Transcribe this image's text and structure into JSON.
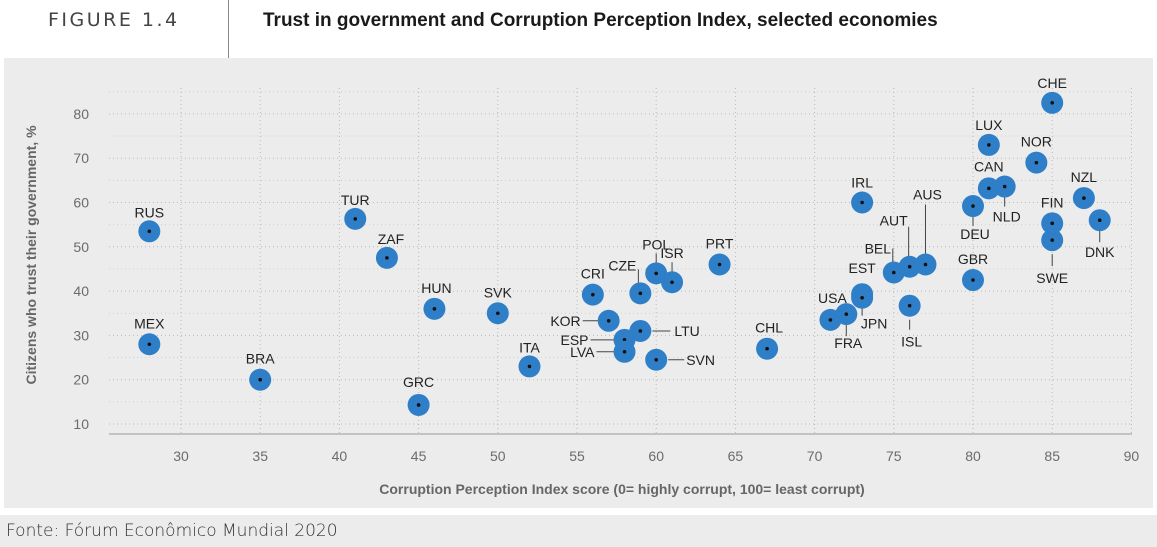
{
  "header": {
    "figure_label": "FIGURE 1.4",
    "title": "Trust in government and Corruption Perception Index, selected economies"
  },
  "source": "Fonte: Fórum Econômico Mundial 2020",
  "colors": {
    "point": "#2f7fc8",
    "point_center": "#111111",
    "panel": "#ececec"
  },
  "chart_data": {
    "type": "scatter",
    "xlabel": "Corruption Perception Index score (0= highly corrupt, 100= least corrupt)",
    "ylabel": "Citizens who trust their government, %",
    "xlim": [
      25.5,
      90
    ],
    "ylim": [
      8,
      86
    ],
    "xticks": [
      30,
      35,
      40,
      45,
      50,
      55,
      60,
      65,
      70,
      75,
      80,
      85,
      90
    ],
    "yticks": [
      10,
      20,
      30,
      40,
      50,
      60,
      70,
      80
    ],
    "grid": true,
    "points": [
      {
        "label": "RUS",
        "x": 28,
        "y": 53.5
      },
      {
        "label": "MEX",
        "x": 28,
        "y": 28
      },
      {
        "label": "BRA",
        "x": 35,
        "y": 20
      },
      {
        "label": "TUR",
        "x": 41,
        "y": 56.3
      },
      {
        "label": "ZAF",
        "x": 43,
        "y": 47.5
      },
      {
        "label": "HUN",
        "x": 46,
        "y": 36
      },
      {
        "label": "GRC",
        "x": 45,
        "y": 14.3
      },
      {
        "label": "SVK",
        "x": 50,
        "y": 35
      },
      {
        "label": "ITA",
        "x": 52,
        "y": 23
      },
      {
        "label": "CRI",
        "x": 56,
        "y": 39.2
      },
      {
        "label": "KOR",
        "x": 57,
        "y": 33.3
      },
      {
        "label": "ESP",
        "x": 58,
        "y": 29
      },
      {
        "label": "LVA",
        "x": 58,
        "y": 26.3
      },
      {
        "label": "CZE",
        "x": 59,
        "y": 39.5
      },
      {
        "label": "LTU",
        "x": 59,
        "y": 31
      },
      {
        "label": "POL",
        "x": 60,
        "y": 44
      },
      {
        "label": "ISR",
        "x": 61,
        "y": 42
      },
      {
        "label": "SVN",
        "x": 60,
        "y": 24.5
      },
      {
        "label": "PRT",
        "x": 64,
        "y": 46
      },
      {
        "label": "CHL",
        "x": 67,
        "y": 27
      },
      {
        "label": "USA",
        "x": 71,
        "y": 33.5
      },
      {
        "label": "FRA",
        "x": 72,
        "y": 34.8
      },
      {
        "label": "EST",
        "x": 73,
        "y": 39.3
      },
      {
        "label": "JPN",
        "x": 73,
        "y": 38.5
      },
      {
        "label": "IRL",
        "x": 73,
        "y": 60
      },
      {
        "label": "BEL",
        "x": 75,
        "y": 44.2
      },
      {
        "label": "AUT",
        "x": 76,
        "y": 45.5
      },
      {
        "label": "AUS",
        "x": 77,
        "y": 46
      },
      {
        "label": "ISL",
        "x": 76,
        "y": 36.7
      },
      {
        "label": "DEU",
        "x": 80,
        "y": 59.2
      },
      {
        "label": "GBR",
        "x": 80,
        "y": 42.5
      },
      {
        "label": "LUX",
        "x": 81,
        "y": 73
      },
      {
        "label": "CAN",
        "x": 81,
        "y": 63.2
      },
      {
        "label": "NLD",
        "x": 82,
        "y": 63.6
      },
      {
        "label": "NOR",
        "x": 84,
        "y": 69
      },
      {
        "label": "CHE",
        "x": 85,
        "y": 82.5
      },
      {
        "label": "FIN",
        "x": 85,
        "y": 55.3
      },
      {
        "label": "SWE",
        "x": 85,
        "y": 51.5
      },
      {
        "label": "NZL",
        "x": 87,
        "y": 61
      },
      {
        "label": "DNK",
        "x": 88,
        "y": 56
      }
    ]
  }
}
